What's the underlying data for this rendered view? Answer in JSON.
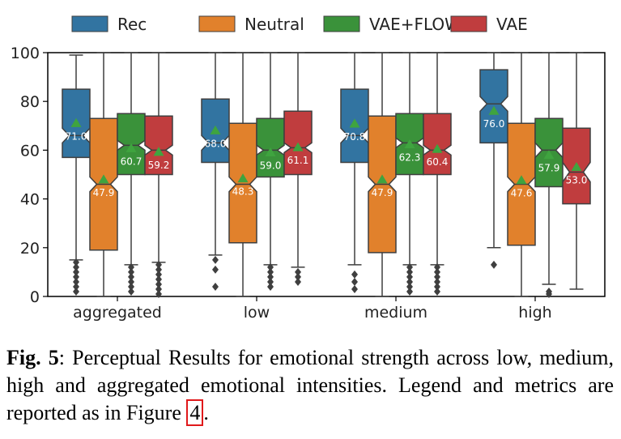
{
  "chart_data": {
    "type": "boxplot",
    "categories": [
      "aggregated",
      "low",
      "medium",
      "high"
    ],
    "ylim": [
      0,
      100
    ],
    "yticks": [
      0,
      20,
      40,
      60,
      80,
      100
    ],
    "legend_position": "top",
    "series": [
      {
        "name": "Rec",
        "color": "#3274a1",
        "boxes": [
          {
            "q1": 57,
            "median": 66,
            "q3": 85,
            "notch_low": 63,
            "notch_high": 69,
            "whisker_low": 15,
            "whisker_high": 99,
            "mean": 71.0,
            "outliers": [
              14,
              12,
              10,
              8,
              6,
              4,
              2
            ]
          },
          {
            "q1": 55,
            "median": 63,
            "q3": 81,
            "notch_low": 60,
            "notch_high": 66,
            "whisker_low": 17,
            "whisker_high": 100,
            "mean": 68.0,
            "outliers": [
              15,
              11,
              4
            ]
          },
          {
            "q1": 55,
            "median": 66,
            "q3": 85,
            "notch_low": 63,
            "notch_high": 69,
            "whisker_low": 13,
            "whisker_high": 100,
            "mean": 70.8,
            "outliers": [
              9,
              6,
              3
            ]
          },
          {
            "q1": 63,
            "median": 79,
            "q3": 93,
            "notch_low": 76,
            "notch_high": 82,
            "whisker_low": 20,
            "whisker_high": 100,
            "mean": 76.0,
            "outliers": [
              13
            ]
          }
        ]
      },
      {
        "name": "Neutral",
        "color": "#e1812c",
        "boxes": [
          {
            "q1": 19,
            "median": 46,
            "q3": 73,
            "notch_low": 43,
            "notch_high": 49,
            "whisker_low": 0,
            "whisker_high": 100,
            "mean": 47.9,
            "outliers": []
          },
          {
            "q1": 22,
            "median": 46,
            "q3": 71,
            "notch_low": 43,
            "notch_high": 49,
            "whisker_low": 0,
            "whisker_high": 100,
            "mean": 48.3,
            "outliers": []
          },
          {
            "q1": 18,
            "median": 46,
            "q3": 74,
            "notch_low": 43,
            "notch_high": 49,
            "whisker_low": 0,
            "whisker_high": 100,
            "mean": 47.9,
            "outliers": []
          },
          {
            "q1": 21,
            "median": 46,
            "q3": 71,
            "notch_low": 43,
            "notch_high": 49,
            "whisker_low": 0,
            "whisker_high": 100,
            "mean": 47.6,
            "outliers": []
          }
        ]
      },
      {
        "name": "VAE+FLOW",
        "color": "#3a923a",
        "boxes": [
          {
            "q1": 50,
            "median": 62,
            "q3": 75,
            "notch_low": 60,
            "notch_high": 64,
            "whisker_low": 13,
            "whisker_high": 100,
            "mean": 60.7,
            "outliers": [
              12,
              10,
              8,
              6,
              4,
              2
            ]
          },
          {
            "q1": 49,
            "median": 60,
            "q3": 73,
            "notch_low": 58,
            "notch_high": 62,
            "whisker_low": 13,
            "whisker_high": 100,
            "mean": 59.0,
            "outliers": [
              12,
              10,
              8,
              6,
              4
            ]
          },
          {
            "q1": 50,
            "median": 63,
            "q3": 75,
            "notch_low": 61,
            "notch_high": 65,
            "whisker_low": 13,
            "whisker_high": 100,
            "mean": 62.3,
            "outliers": [
              12,
              10,
              8,
              6,
              4,
              2
            ]
          },
          {
            "q1": 45,
            "median": 60,
            "q3": 73,
            "notch_low": 57,
            "notch_high": 63,
            "whisker_low": 5,
            "whisker_high": 100,
            "mean": 57.9,
            "outliers": [
              2,
              1
            ]
          }
        ]
      },
      {
        "name": "VAE",
        "color": "#c03d3e",
        "boxes": [
          {
            "q1": 50,
            "median": 60,
            "q3": 74,
            "notch_low": 58,
            "notch_high": 62,
            "whisker_low": 14,
            "whisker_high": 100,
            "mean": 59.2,
            "outliers": [
              13,
              11,
              9,
              7,
              5,
              3,
              1
            ]
          },
          {
            "q1": 50,
            "median": 61,
            "q3": 76,
            "notch_low": 59,
            "notch_high": 63,
            "whisker_low": 12,
            "whisker_high": 100,
            "mean": 61.1,
            "outliers": [
              10,
              8,
              6
            ]
          },
          {
            "q1": 50,
            "median": 60,
            "q3": 75,
            "notch_low": 58,
            "notch_high": 62,
            "whisker_low": 13,
            "whisker_high": 100,
            "mean": 60.4,
            "outliers": [
              12,
              10,
              8,
              6,
              4,
              2
            ]
          },
          {
            "q1": 38,
            "median": 51,
            "q3": 69,
            "notch_low": 47,
            "notch_high": 55,
            "whisker_low": 3,
            "whisker_high": 100,
            "mean": 53.0,
            "outliers": []
          }
        ]
      }
    ]
  },
  "caption": {
    "label": "Fig. 5",
    "text_before": ": Perceptual Results for emotional strength across low, medium, high and aggregated emotional intensities. Legend and metrics are reported as in Figure ",
    "ref": "4",
    "text_after": "."
  }
}
